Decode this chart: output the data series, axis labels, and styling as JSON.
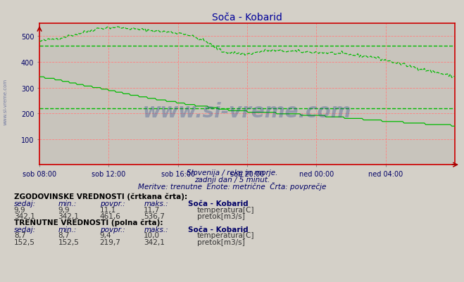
{
  "title": "Soča - Kobarid",
  "subtitle1": "Slovenija / reke in morje.",
  "subtitle2": "zadnji dan / 5 minut.",
  "subtitle3": "Meritve: trenutne  Enote: metrične  Črta: povprečje",
  "xlabel_ticks": [
    "sob 08:00",
    "sob 12:00",
    "sob 16:00",
    "sob 20:00",
    "ned 00:00",
    "ned 04:00"
  ],
  "ylim": [
    0,
    550
  ],
  "background_color": "#d4d0c8",
  "plot_bg_color": "#c8c4bc",
  "grid_color": "#ff8080",
  "flow_color": "#00bb00",
  "temp_color": "#dd0000",
  "avg_flow_hist": 461.6,
  "avg_flow_curr": 219.7,
  "watermark": "www.si-vreme.com",
  "hist_temp_sedaj": "9,9",
  "hist_temp_min": "9,9",
  "hist_temp_povpr": "11,1",
  "hist_temp_maks": "11,7",
  "hist_flow_sedaj": "342,1",
  "hist_flow_min": "342,1",
  "hist_flow_povpr": "461,6",
  "hist_flow_maks": "536,7",
  "curr_temp_sedaj": "8,7",
  "curr_temp_min": "8,7",
  "curr_temp_povpr": "9,4",
  "curr_temp_maks": "10,0",
  "curr_flow_sedaj": "152,5",
  "curr_flow_min": "152,5",
  "curr_flow_povpr": "219,7",
  "curr_flow_maks": "342,1"
}
